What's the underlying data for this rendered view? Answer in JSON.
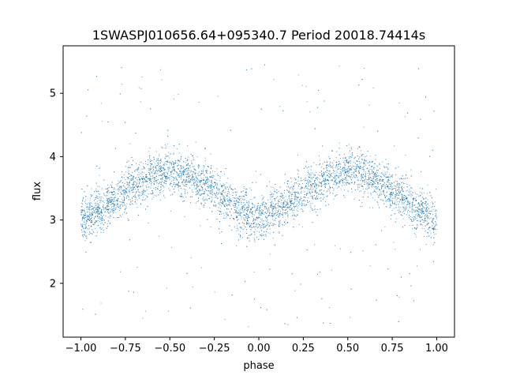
{
  "chart_data": {
    "type": "scatter",
    "title": "1SWASPJ010656.64+095340.7 Period 20018.74414s",
    "xlabel": "phase",
    "ylabel": "flux",
    "xlim": [
      -1.1,
      1.1
    ],
    "ylim": [
      1.15,
      5.75
    ],
    "x_ticks": [
      -1.0,
      -0.75,
      -0.5,
      -0.25,
      0.0,
      0.25,
      0.5,
      0.75,
      1.0
    ],
    "x_tick_labels": [
      "−1.00",
      "−0.75",
      "−0.50",
      "−0.25",
      "0.00",
      "0.25",
      "0.50",
      "0.75",
      "1.00"
    ],
    "y_ticks": [
      2,
      3,
      4,
      5
    ],
    "y_tick_labels": [
      "2",
      "3",
      "4",
      "5"
    ],
    "grid": false,
    "point_color": "#1f77b4",
    "series": [
      {
        "phase_range": [
          -1.0,
          1.0
        ],
        "mean_curve": {
          "phase": [
            -1.0,
            -0.9,
            -0.8,
            -0.7,
            -0.6,
            -0.5,
            -0.4,
            -0.3,
            -0.2,
            -0.1,
            0.0,
            0.1,
            0.2,
            0.3,
            0.4,
            0.5,
            0.6,
            0.7,
            0.8,
            0.9,
            1.0
          ],
          "flux": [
            3.0,
            3.15,
            3.35,
            3.55,
            3.7,
            3.75,
            3.7,
            3.55,
            3.35,
            3.15,
            3.0,
            3.15,
            3.35,
            3.55,
            3.7,
            3.75,
            3.7,
            3.55,
            3.35,
            3.15,
            3.0
          ]
        },
        "scatter_spread": 0.28,
        "outlier_range": [
          1.3,
          5.5
        ]
      }
    ]
  }
}
